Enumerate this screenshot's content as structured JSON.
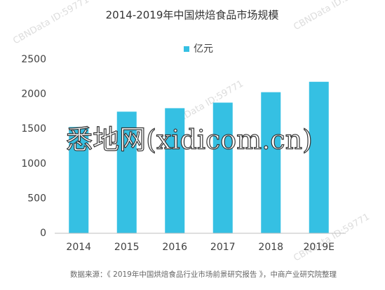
{
  "chart_data": {
    "type": "bar",
    "title": "2014-2019年中国烘焙食品市场规模",
    "categories": [
      "2014",
      "2015",
      "2016",
      "2017",
      "2018",
      "2019E"
    ],
    "series": [
      {
        "name": "亿元",
        "color": "#35c0e3",
        "values": [
          1530,
          1750,
          1800,
          1880,
          2030,
          2180
        ]
      }
    ],
    "ylim": [
      0,
      2500
    ],
    "yticks": [
      0,
      500,
      1000,
      1500,
      2000,
      2500
    ],
    "grid": false,
    "legend": "top",
    "source": "数据来源：《 2019年中国烘焙食品行业市场前景研究报告 》，中商产业研究院整理",
    "watermark": "悉地网(xidicom.cn)",
    "watermark_small": "CBNData ID:59771"
  }
}
